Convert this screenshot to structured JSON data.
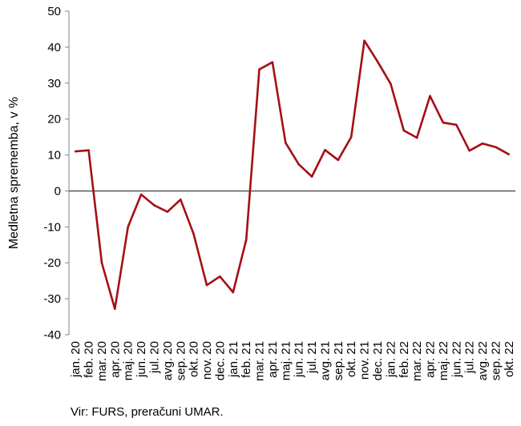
{
  "source_text": "Vir: FURS, preračuni UMAR.",
  "chart_data": {
    "type": "line",
    "title": "",
    "xlabel": "",
    "ylabel": "Medletna sprememba, v %",
    "ylim": [
      -40,
      50
    ],
    "yticks": [
      -40,
      -30,
      -20,
      -10,
      0,
      10,
      20,
      30,
      40,
      50
    ],
    "grid": false,
    "legend": "none",
    "series_color": "#A50F15",
    "zero_line_color": "#555555",
    "categories": [
      "jan. 20",
      "feb. 20",
      "mar. 20",
      "apr. 20",
      "maj. 20",
      "jun. 20",
      "jul. 20",
      "avg. 20",
      "sep. 20",
      "okt. 20",
      "nov. 20",
      "dec. 20",
      "jan. 21",
      "feb. 21",
      "mar. 21",
      "apr. 21",
      "maj. 21",
      "jun. 21",
      "jul. 21",
      "avg. 21",
      "sep. 21",
      "okt. 21",
      "nov. 21",
      "dec. 21",
      "jan. 22",
      "feb. 22",
      "mar. 22",
      "apr. 22",
      "maj. 22",
      "jun. 22",
      "jul. 22",
      "avg. 22",
      "sep. 22",
      "okt. 22"
    ],
    "series": [
      {
        "values": [
          11.0,
          11.3,
          -20.0,
          -32.8,
          -10.0,
          -1.0,
          -4.0,
          -5.8,
          -2.4,
          -12.0,
          -26.2,
          -23.8,
          -28.2,
          -13.6,
          33.8,
          35.8,
          13.4,
          7.4,
          4.0,
          11.4,
          8.6,
          15.0,
          41.8,
          36.0,
          29.8,
          16.8,
          14.8,
          26.4,
          19.0,
          18.4,
          11.2,
          13.2,
          12.2,
          10.2
        ]
      }
    ]
  }
}
